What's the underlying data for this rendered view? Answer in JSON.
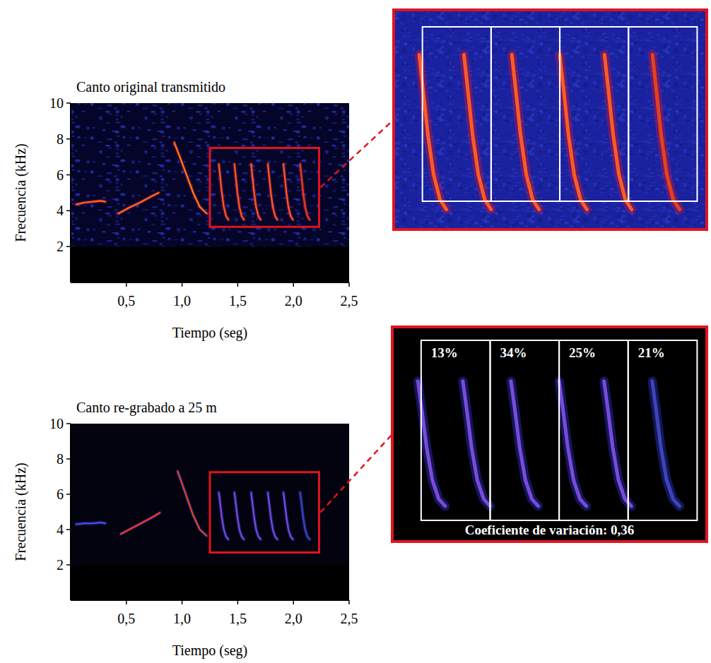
{
  "chart_data": [
    {
      "type": "spectrogram",
      "title": "Canto original transmitido",
      "x_label": "Tiempo (seg)",
      "y_label": "Frecuencia (kHz)",
      "xlim": [
        0,
        2.5
      ],
      "ylim": [
        0,
        10
      ],
      "xticks": [
        {
          "value": 0.5,
          "label": "0,5"
        },
        {
          "value": 1.0,
          "label": "1,0"
        },
        {
          "value": 1.5,
          "label": "1,5"
        },
        {
          "value": 2.0,
          "label": "2,0"
        },
        {
          "value": 2.5,
          "label": "2,5"
        }
      ],
      "yticks": [
        2,
        4,
        6,
        8,
        10
      ],
      "series": [
        {
          "color": "#ff6a1a",
          "x": [
            0.05,
            0.12,
            0.2,
            0.27,
            0.31
          ],
          "values": [
            4.35,
            4.45,
            4.5,
            4.55,
            4.5
          ]
        },
        {
          "color": "#ff7018",
          "x": [
            0.43,
            0.52,
            0.62,
            0.71,
            0.79
          ],
          "values": [
            3.85,
            4.15,
            4.45,
            4.75,
            5.0
          ]
        },
        {
          "color": "#ff7a10",
          "x": [
            0.93,
            0.98,
            1.04,
            1.1,
            1.16,
            1.22
          ],
          "values": [
            7.8,
            7.0,
            6.0,
            5.0,
            4.2,
            3.85
          ]
        },
        {
          "color": "#ff5a20",
          "x": [
            1.33,
            1.342,
            1.357,
            1.375,
            1.395,
            1.415
          ],
          "values": [
            6.6,
            5.9,
            5.0,
            4.2,
            3.7,
            3.5
          ]
        },
        {
          "color": "#ff5a20",
          "x": [
            1.47,
            1.482,
            1.497,
            1.515,
            1.535,
            1.555
          ],
          "values": [
            6.6,
            5.9,
            5.0,
            4.2,
            3.7,
            3.5
          ]
        },
        {
          "color": "#ff5a20",
          "x": [
            1.62,
            1.632,
            1.647,
            1.665,
            1.685,
            1.705
          ],
          "values": [
            6.6,
            5.9,
            5.0,
            4.2,
            3.7,
            3.5
          ]
        },
        {
          "color": "#ff5a20",
          "x": [
            1.77,
            1.782,
            1.797,
            1.815,
            1.835,
            1.855
          ],
          "values": [
            6.6,
            5.9,
            5.0,
            4.2,
            3.7,
            3.5
          ]
        },
        {
          "color": "#ff5a20",
          "x": [
            1.91,
            1.922,
            1.937,
            1.955,
            1.975,
            1.995
          ],
          "values": [
            6.6,
            5.9,
            5.0,
            4.2,
            3.7,
            3.5
          ]
        },
        {
          "color": "#e8401a",
          "x": [
            2.06,
            2.072,
            2.087,
            2.105,
            2.125,
            2.145
          ],
          "values": [
            6.6,
            5.9,
            5.0,
            4.2,
            3.7,
            3.5
          ]
        }
      ],
      "zoom": {
        "xlim": [
          1.25,
          2.23
        ],
        "ylim": [
          3.1,
          7.5
        ],
        "segments": [
          [
            1.34,
            1.555
          ],
          [
            1.555,
            1.77
          ],
          [
            1.77,
            1.985
          ],
          [
            1.985,
            2.2
          ]
        ]
      }
    },
    {
      "type": "spectrogram",
      "title": "Canto re-grabado a 25 m",
      "x_label": "Tiempo (seg)",
      "y_label": "Frecuencia (kHz)",
      "xlim": [
        0,
        2.5
      ],
      "ylim": [
        0,
        10
      ],
      "xticks": [
        {
          "value": 0.5,
          "label": "0,5"
        },
        {
          "value": 1.0,
          "label": "1,0"
        },
        {
          "value": 1.5,
          "label": "1,5"
        },
        {
          "value": 2.0,
          "label": "2,0"
        },
        {
          "value": 2.5,
          "label": "2,5"
        }
      ],
      "yticks": [
        2,
        4,
        6,
        8,
        10
      ],
      "data_labels": true,
      "series": [
        {
          "color": "#4b55e0",
          "x": [
            0.05,
            0.12,
            0.2,
            0.27,
            0.31
          ],
          "values": [
            4.3,
            4.35,
            4.35,
            4.4,
            4.35
          ]
        },
        {
          "color": "#ff3a18",
          "x": [
            0.45,
            0.54,
            0.63,
            0.72,
            0.8
          ],
          "values": [
            3.75,
            4.05,
            4.35,
            4.65,
            4.95
          ]
        },
        {
          "color": "#e8441e",
          "x": [
            0.96,
            1.0,
            1.05,
            1.1,
            1.16,
            1.22
          ],
          "values": [
            7.3,
            6.6,
            5.7,
            4.8,
            4.0,
            3.65
          ]
        },
        {
          "color": "#7a4ad8",
          "x": [
            1.33,
            1.342,
            1.357,
            1.375,
            1.395,
            1.415
          ],
          "values": [
            6.1,
            5.5,
            4.7,
            4.0,
            3.6,
            3.45
          ]
        },
        {
          "color": "#7a4ad8",
          "x": [
            1.47,
            1.482,
            1.497,
            1.515,
            1.535,
            1.555
          ],
          "values": [
            6.1,
            5.5,
            4.7,
            4.0,
            3.6,
            3.45
          ]
        },
        {
          "color": "#7a4ad8",
          "x": [
            1.62,
            1.632,
            1.647,
            1.665,
            1.685,
            1.705
          ],
          "values": [
            6.1,
            5.5,
            4.7,
            4.0,
            3.6,
            3.45
          ]
        },
        {
          "color": "#7a4ad8",
          "x": [
            1.77,
            1.782,
            1.797,
            1.815,
            1.835,
            1.855
          ],
          "values": [
            6.1,
            5.5,
            4.7,
            4.0,
            3.6,
            3.45
          ]
        },
        {
          "color": "#7a4ad8",
          "x": [
            1.91,
            1.922,
            1.937,
            1.955,
            1.975,
            1.995
          ],
          "values": [
            6.1,
            5.5,
            4.7,
            4.0,
            3.6,
            3.45
          ]
        },
        {
          "color": "#3c44b8",
          "x": [
            2.06,
            2.072,
            2.087,
            2.105,
            2.125,
            2.145
          ],
          "values": [
            6.1,
            5.5,
            4.7,
            4.0,
            3.6,
            3.45
          ]
        }
      ],
      "zoom": {
        "xlim": [
          1.25,
          2.23
        ],
        "ylim": [
          2.7,
          7.25
        ],
        "segments": [
          [
            1.34,
            1.555
          ],
          [
            1.555,
            1.77
          ],
          [
            1.77,
            1.985
          ],
          [
            1.985,
            2.2
          ]
        ],
        "values": [
          13,
          34,
          25,
          21
        ],
        "value_labels": [
          "13%",
          "34%",
          "25%",
          "21%"
        ],
        "cv": {
          "value": 0.36,
          "label": "Coeficiente de variación: 0,36"
        }
      }
    }
  ]
}
